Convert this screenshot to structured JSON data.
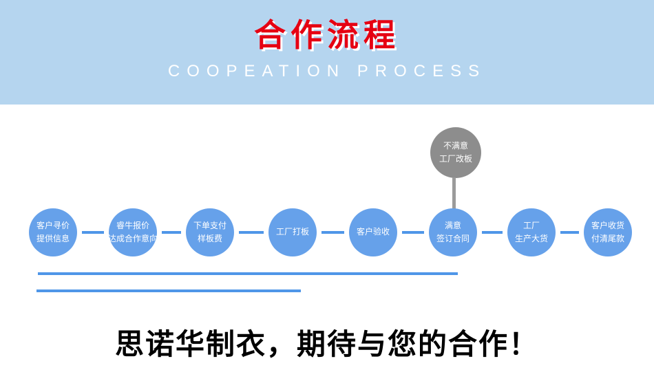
{
  "header": {
    "title": "合作流程",
    "subtitle": "COOPEATION PROCESS",
    "band_color": "#b5d5ef",
    "title_color": "#e60012",
    "subtitle_color": "#ffffff"
  },
  "flow": {
    "reject_node": {
      "lines": [
        "不满意",
        "工厂改板"
      ],
      "color": "#8d8d8d",
      "connector_color": "#9b9b9b"
    },
    "steps": [
      {
        "lines": [
          "客户寻价",
          "提供信息"
        ]
      },
      {
        "lines": [
          "睿牛报价",
          "达成合作意向"
        ]
      },
      {
        "lines": [
          "下单支付",
          "样板费"
        ]
      },
      {
        "lines": [
          "工厂打板"
        ]
      },
      {
        "lines": [
          "客户验收"
        ]
      },
      {
        "lines": [
          "满意",
          "签订合同"
        ]
      },
      {
        "lines": [
          "工厂",
          "生产大货"
        ]
      },
      {
        "lines": [
          "客户收货",
          "付清尾款"
        ]
      }
    ],
    "step_color": "#66a1ea",
    "connector_color": "#4f96e8",
    "underline_color": "#4f96e8"
  },
  "footer": {
    "slogan": "思诺华制衣，期待与您的合作！",
    "slogan_color": "#000000"
  }
}
